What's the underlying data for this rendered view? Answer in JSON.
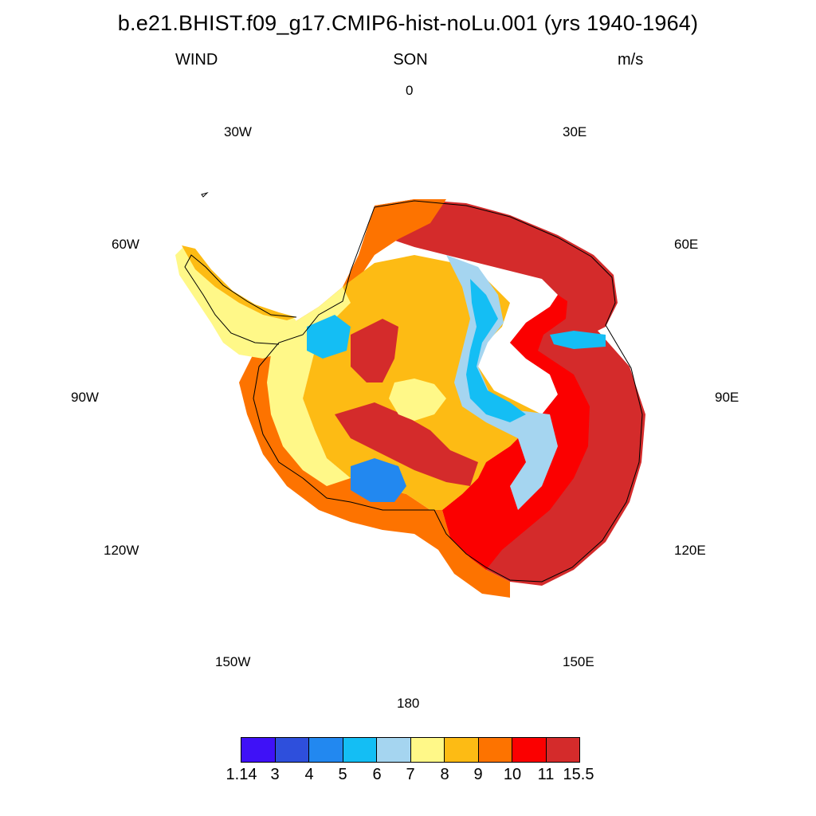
{
  "header": {
    "title": "b.e21.BHIST.f09_g17.CMIP6-hist-noLu.001 (yrs 1940-1964)",
    "variable": "WIND",
    "season": "SON",
    "units": "m/s"
  },
  "longitude_labels": [
    "0",
    "30E",
    "60E",
    "90E",
    "120E",
    "150E",
    "180",
    "150W",
    "120W",
    "90W",
    "60W",
    "30W"
  ],
  "colorbar": {
    "colors": [
      "#3f11f7",
      "#2e4fdc",
      "#2288f0",
      "#14bef4",
      "#a5d5f0",
      "#fff888",
      "#fdbb14",
      "#fd7300",
      "#fb0000",
      "#d42b2b"
    ],
    "tick_labels": [
      "1.14",
      "3",
      "4",
      "5",
      "6",
      "7",
      "8",
      "9",
      "10",
      "11",
      "15.5"
    ]
  }
}
